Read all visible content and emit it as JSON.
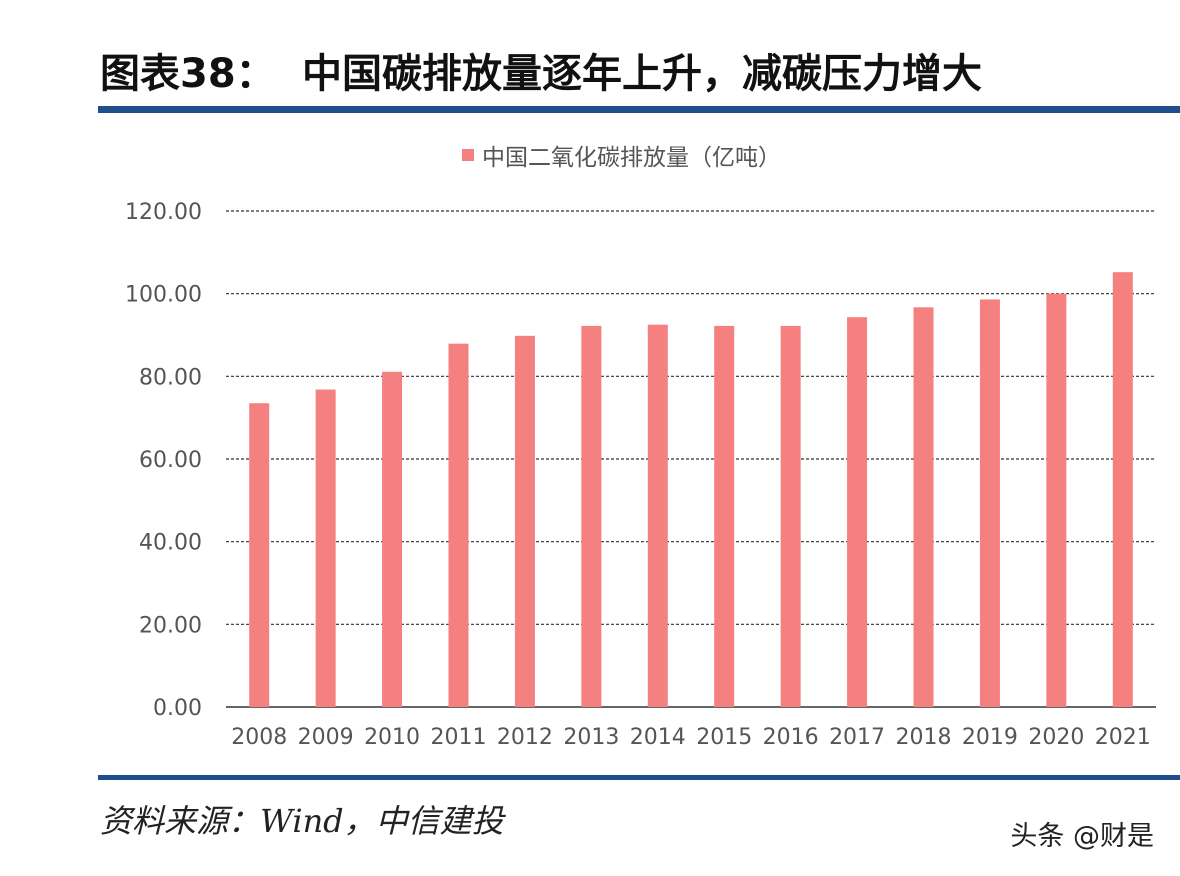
{
  "figure": {
    "label": "图表38：",
    "title": "中国碳排放量逐年上升，减碳压力增大",
    "source": "资料来源：Wind，中信建投",
    "watermark": "头条 @财是"
  },
  "chart_data": {
    "type": "bar",
    "categories": [
      "2008",
      "2009",
      "2010",
      "2011",
      "2012",
      "2013",
      "2014",
      "2015",
      "2016",
      "2017",
      "2018",
      "2019",
      "2020",
      "2021"
    ],
    "series": [
      {
        "name": "中国二氧化碳排放量（亿吨）",
        "color": "#f4807f",
        "values": [
          73.5,
          76.8,
          81.1,
          87.9,
          89.8,
          92.2,
          92.5,
          92.2,
          92.2,
          94.3,
          96.7,
          98.6,
          100.0,
          105.2
        ]
      }
    ],
    "ylim": [
      0,
      120
    ],
    "yticks": [
      "0.00",
      "20.00",
      "40.00",
      "60.00",
      "80.00",
      "100.00",
      "120.00"
    ],
    "grid": true,
    "legend_position": "top-center"
  }
}
